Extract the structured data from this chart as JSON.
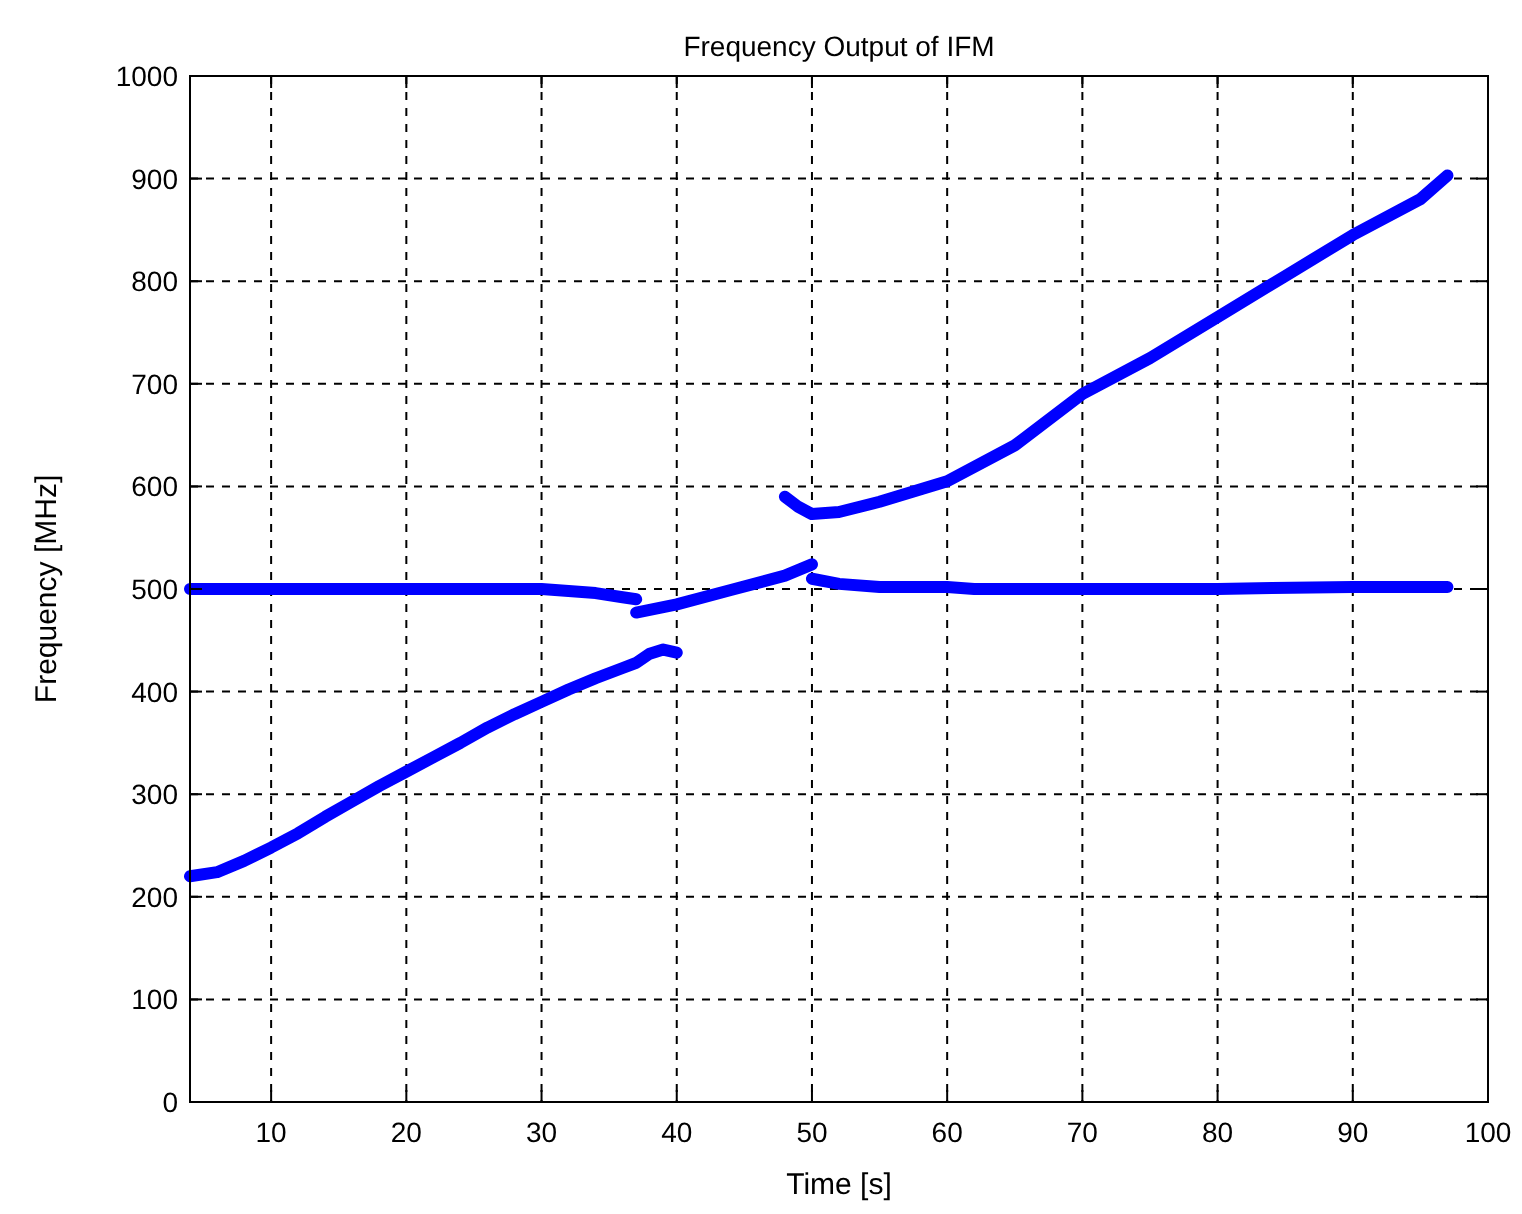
{
  "chart_data": {
    "type": "line",
    "title": "Frequency Output of IFM",
    "xlabel": "Time [s]",
    "ylabel": "Frequency [MHz]",
    "xlim": [
      4,
      100
    ],
    "xticks": [
      10,
      20,
      30,
      40,
      50,
      60,
      70,
      80,
      90,
      100
    ],
    "ylim": [
      0,
      1000
    ],
    "yticks": [
      0,
      100,
      200,
      300,
      400,
      500,
      600,
      700,
      800,
      900,
      1000
    ],
    "grid": true,
    "line_style": "solid",
    "marker": "none",
    "series": [
      {
        "color": "#0000ff",
        "x": [
          4,
          10,
          20,
          30,
          32,
          34,
          36,
          37
        ],
        "values": [
          500,
          500,
          500,
          500,
          498,
          496,
          492,
          490
        ]
      },
      {
        "color": "#0000ff",
        "x": [
          4,
          6,
          8,
          10,
          12,
          14,
          16,
          18,
          20,
          22,
          24,
          26,
          28,
          30,
          32,
          34,
          36,
          37,
          38,
          39,
          40
        ],
        "values": [
          220,
          224,
          235,
          248,
          262,
          278,
          293,
          308,
          322,
          336,
          350,
          365,
          378,
          390,
          402,
          413,
          423,
          428,
          437,
          441,
          438
        ]
      },
      {
        "color": "#0000ff",
        "x": [
          37,
          40,
          44,
          48,
          50
        ],
        "values": [
          477,
          485,
          499,
          513,
          524
        ]
      },
      {
        "color": "#0000ff",
        "x": [
          48,
          49,
          50,
          52,
          55,
          60,
          65,
          70,
          75,
          80,
          85,
          90,
          95,
          97
        ],
        "values": [
          590,
          580,
          573,
          575,
          585,
          605,
          640,
          690,
          725,
          765,
          805,
          845,
          880,
          903
        ]
      },
      {
        "color": "#0000ff",
        "x": [
          50,
          52,
          55,
          60,
          62,
          70,
          80,
          84,
          90,
          97
        ],
        "values": [
          510,
          505,
          502,
          502,
          500,
          500,
          500,
          501,
          502,
          502
        ]
      }
    ]
  }
}
